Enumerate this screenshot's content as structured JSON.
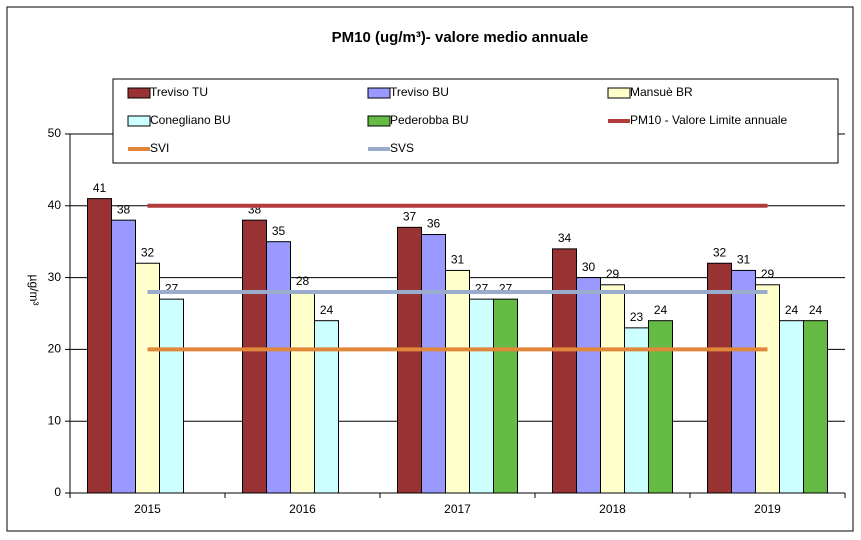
{
  "chart_data": {
    "type": "bar",
    "title": "PM10 (ug/m³)- valore medio annuale",
    "y_label": "µg/m³",
    "categories": [
      "2015",
      "2016",
      "2017",
      "2018",
      "2019"
    ],
    "ylim": [
      0,
      50
    ],
    "yticks": [
      0,
      10,
      20,
      30,
      40,
      50
    ],
    "grid": true,
    "series": [
      {
        "name": "Treviso TU",
        "color": "#993333",
        "values": [
          41,
          38,
          37,
          34,
          32
        ]
      },
      {
        "name": "Treviso BU",
        "color": "#9999ff",
        "values": [
          38,
          35,
          36,
          30,
          31
        ]
      },
      {
        "name": "Mansuè BR",
        "color": "#ffffcc",
        "values": [
          32,
          28,
          31,
          29,
          29
        ]
      },
      {
        "name": "Conegliano BU",
        "color": "#ccffff",
        "values": [
          27,
          24,
          27,
          23,
          24
        ]
      },
      {
        "name": "Pederobba BU",
        "color": "#66bb44",
        "values": [
          null,
          null,
          27,
          24,
          24
        ]
      },
      {
        "name": "PM10 - Valore Limite annuale",
        "color": "#b23c3c",
        "type": "line",
        "values": [
          40,
          40,
          40,
          40,
          40
        ]
      },
      {
        "name": "SVI",
        "color": "#e0873a",
        "type": "line",
        "values": [
          20,
          20,
          20,
          20,
          20
        ]
      },
      {
        "name": "SVS",
        "color": "#9aaccc",
        "type": "line",
        "values": [
          28,
          28,
          28,
          28,
          28
        ]
      }
    ]
  }
}
